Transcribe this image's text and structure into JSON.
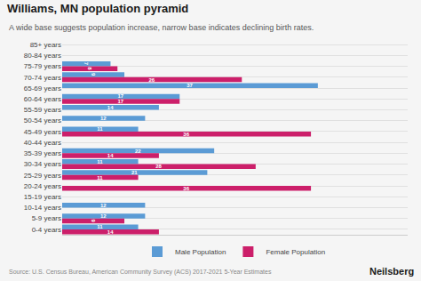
{
  "chart_data": {
    "type": "bar",
    "orientation": "horizontal",
    "title": "Williams, MN population pyramid",
    "subtitle": "A wide base suggests population increase, narrow base indicates declining birth rates.",
    "source": "Source: U.S. Census Bureau, American Community Survey (ACS) 2017-2021 5-Year Estimates",
    "annotations": [
      "Neilsberg"
    ],
    "categories": [
      "85+ years",
      "80-84 years",
      "75-79 years",
      "70-74 years",
      "65-69 years",
      "60-64 years",
      "55-59 years",
      "50-54 years",
      "45-49 years",
      "40-44 years",
      "35-39 years",
      "30-34 years",
      "25-29 years",
      "20-24 years",
      "15-19 years",
      "10-14 years",
      "5-9 years",
      "0-4 years"
    ],
    "series": [
      {
        "name": "Male Population",
        "color": "#5B9BD5",
        "values": [
          0,
          0,
          7,
          9,
          37,
          17,
          14,
          12,
          11,
          0,
          22,
          11,
          21,
          0,
          0,
          12,
          12,
          11
        ],
        "value_labels": [
          null,
          null,
          "7",
          "9",
          "37",
          "17",
          "14",
          "12",
          "11",
          null,
          "22",
          "11",
          "21",
          null,
          null,
          "12",
          "12",
          "11"
        ]
      },
      {
        "name": "Female Population",
        "color": "#CC1F6A",
        "values": [
          0,
          0,
          8,
          26,
          0,
          17,
          0,
          0,
          36,
          0,
          14,
          28,
          11,
          36,
          0,
          0,
          9,
          14
        ],
        "value_labels": [
          null,
          null,
          "8",
          "26",
          null,
          "17",
          null,
          null,
          "36",
          null,
          "14",
          "28",
          "11",
          "36",
          null,
          null,
          "9",
          "14"
        ]
      }
    ],
    "xlim": [
      0,
      50
    ],
    "grid": true,
    "legend": "bottom",
    "data_labels": true,
    "tick_labels": "y"
  }
}
